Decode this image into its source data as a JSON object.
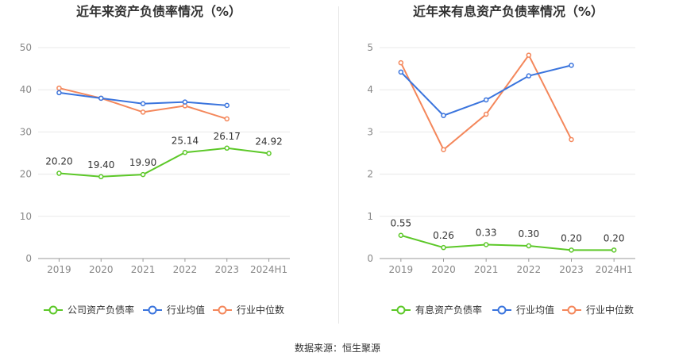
{
  "source_label": "数据来源：恒生聚源",
  "colors": {
    "company": "#5cc828",
    "avg": "#3a74dd",
    "median": "#f4875b",
    "grid": "#e8e8e8",
    "axis": "#888888",
    "text": "#333333"
  },
  "chart_data": [
    {
      "type": "line",
      "title": "近年来资产负债率情况（%）",
      "categories": [
        "2019",
        "2020",
        "2021",
        "2022",
        "2023",
        "2024H1"
      ],
      "ylim": [
        0,
        50
      ],
      "yticks": [
        0,
        10,
        20,
        30,
        40,
        50
      ],
      "grid": true,
      "legend_position": "bottom",
      "series": [
        {
          "name": "公司资产负债率",
          "key": "company",
          "values": [
            20.2,
            19.4,
            19.9,
            25.14,
            26.17,
            24.92
          ],
          "labels": [
            "20.20",
            "19.40",
            "19.90",
            "25.14",
            "26.17",
            "24.92"
          ]
        },
        {
          "name": "行业均值",
          "key": "avg",
          "values": [
            39.3,
            38.0,
            36.7,
            37.1,
            36.3,
            null
          ]
        },
        {
          "name": "行业中位数",
          "key": "median",
          "values": [
            40.4,
            38.0,
            34.7,
            36.2,
            33.1,
            null
          ]
        }
      ]
    },
    {
      "type": "line",
      "title": "近年来有息资产负债率情况（%）",
      "categories": [
        "2019",
        "2020",
        "2021",
        "2022",
        "2023",
        "2024H1"
      ],
      "ylim": [
        0,
        5
      ],
      "yticks": [
        0,
        1,
        2,
        3,
        4,
        5
      ],
      "grid": true,
      "legend_position": "bottom",
      "series": [
        {
          "name": "有息资产负债率",
          "key": "company",
          "values": [
            0.55,
            0.26,
            0.33,
            0.3,
            0.2,
            0.2
          ],
          "labels": [
            "0.55",
            "0.26",
            "0.33",
            "0.30",
            "0.20",
            "0.20"
          ]
        },
        {
          "name": "行业均值",
          "key": "avg",
          "values": [
            4.42,
            3.39,
            3.76,
            4.33,
            4.58,
            null
          ]
        },
        {
          "name": "行业中位数",
          "key": "median",
          "values": [
            4.64,
            2.58,
            3.42,
            4.82,
            2.82,
            null
          ]
        }
      ]
    }
  ]
}
